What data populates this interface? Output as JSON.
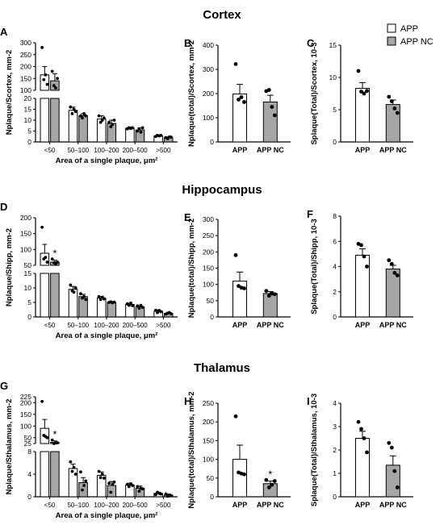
{
  "figure": {
    "section_titles": [
      "Cortex",
      "Hippocampus",
      "Thalamus"
    ],
    "legend": {
      "items": [
        {
          "label": "APP",
          "color": "#ffffff"
        },
        {
          "label": "APP NC",
          "color": "#a6a6a6"
        }
      ],
      "placement": "top-right"
    },
    "colors": {
      "APP": "#ffffff",
      "APP NC": "#a6a6a6",
      "stroke": "#000000",
      "point": "#000000"
    }
  },
  "chart_data": [
    {
      "panel": "A",
      "type": "bar",
      "xlabel": "Area of a single plaque, μm²",
      "ylabel": "Nplaque/Scortex, mm-2",
      "categories": [
        "<50",
        "50–100",
        "100–200",
        "200–500",
        ">500"
      ],
      "y_broken": true,
      "y_lower": {
        "range": [
          0,
          20
        ],
        "ticks": [
          "0",
          "5",
          "10",
          "15",
          "20"
        ]
      },
      "y_upper": {
        "range": [
          100,
          300
        ],
        "ticks": [
          "100",
          "150",
          "200",
          "250",
          "300"
        ]
      },
      "series": [
        {
          "name": "APP",
          "values": [
            165,
            14.5,
            10.5,
            6.3,
            2.8
          ],
          "errors": [
            35,
            1.5,
            1.5,
            0.5,
            0.4
          ],
          "points": [
            [
              280,
              145,
              165,
              125
            ],
            [
              16,
              13,
              15,
              14
            ],
            [
              12,
              9,
              10,
              11
            ],
            [
              6,
              6.5,
              6.2,
              6.5
            ],
            [
              2.5,
              3,
              2.8,
              3
            ]
          ]
        },
        {
          "name": "APP NC",
          "values": [
            140,
            12,
            8.5,
            5.5,
            2
          ],
          "errors": [
            30,
            1,
            1.5,
            1,
            0.3
          ],
          "points": [
            [
              180,
              120,
              110,
              150
            ],
            [
              12,
              11,
              13,
              12
            ],
            [
              9,
              7,
              8,
              10
            ],
            [
              5,
              6,
              4.5,
              6.5
            ],
            [
              2,
              1.5,
              2.3,
              2.2
            ]
          ]
        }
      ]
    },
    {
      "panel": "B",
      "type": "bar",
      "ylabel": "Nplaque(total)/Scortex, mm-2",
      "categories": [
        "APP",
        "APP NC"
      ],
      "ylim": [
        0,
        400
      ],
      "ticks": [
        "0",
        "100",
        "200",
        "300",
        "400"
      ],
      "values": [
        198,
        165
      ],
      "errors": [
        40,
        28
      ],
      "points": [
        [
          322,
          175,
          185,
          165
        ],
        [
          210,
          215,
          145,
          110
        ]
      ]
    },
    {
      "panel": "C",
      "type": "bar",
      "ylabel": "Splaque(Total)/Scortex, 10-3",
      "categories": [
        "APP",
        "APP NC"
      ],
      "ylim": [
        0,
        15
      ],
      "ticks": [
        "0",
        "5",
        "10",
        "15"
      ],
      "values": [
        8.3,
        5.8
      ],
      "errors": [
        0.9,
        0.7
      ],
      "points": [
        [
          11,
          7.8,
          7.5,
          7.9
        ],
        [
          7,
          6.3,
          5.2,
          4.5
        ]
      ]
    },
    {
      "panel": "D",
      "type": "bar",
      "xlabel": "Area of a single plaque, μm²",
      "ylabel": "Nplaque/Shipp, mm-2",
      "categories": [
        "<50",
        "50–100",
        "100–200",
        "200–500",
        ">500"
      ],
      "y_broken": true,
      "y_lower": {
        "range": [
          0,
          15
        ],
        "ticks": [
          "0",
          "5",
          "10",
          "15"
        ]
      },
      "y_upper": {
        "range": [
          50,
          200
        ],
        "ticks": [
          "50",
          "100",
          "150",
          "200"
        ]
      },
      "annotation": "*",
      "series": [
        {
          "name": "APP",
          "values": [
            88,
            9.5,
            6.5,
            4.3,
            2
          ],
          "errors": [
            28,
            1,
            0.5,
            0.4,
            0.4
          ],
          "points": [
            [
              170,
              70,
              75,
              60
            ],
            [
              11,
              9,
              8.5,
              10
            ],
            [
              7,
              6,
              6.8,
              6.2
            ],
            [
              4.5,
              4,
              4.8,
              3.9
            ],
            [
              2.3,
              1.5,
              2.2,
              1.8
            ]
          ]
        },
        {
          "name": "APP NC",
          "values": [
            60,
            7,
            5,
            3.5,
            1.2
          ],
          "errors": [
            6,
            0.8,
            0.3,
            0.4,
            0.2
          ],
          "points": [
            [
              70,
              58,
              55,
              60
            ],
            [
              8,
              6.5,
              7,
              6
            ],
            [
              5,
              5.2,
              4.9,
              5.1
            ],
            [
              3.8,
              3,
              4,
              3.3
            ],
            [
              1,
              1.3,
              1.5,
              1.1
            ]
          ]
        }
      ]
    },
    {
      "panel": "E",
      "type": "bar",
      "ylabel": "Nplaque(total)/Shipp, mm-2",
      "categories": [
        "APP",
        "APP NC"
      ],
      "ylim": [
        0,
        300
      ],
      "ticks": [
        "0",
        "50",
        "100",
        "150",
        "200",
        "250",
        "300"
      ],
      "values": [
        110,
        72
      ],
      "errors": [
        28,
        6
      ],
      "points": [
        [
          190,
          95,
          90,
          88
        ],
        [
          80,
          65,
          72,
          70
        ]
      ]
    },
    {
      "panel": "F",
      "type": "bar",
      "ylabel": "Splaque(Total)/Shipp, 10-3",
      "categories": [
        "APP",
        "APP NC"
      ],
      "ylim": [
        0,
        8
      ],
      "ticks": [
        "0",
        "2",
        "4",
        "6",
        "8"
      ],
      "values": [
        4.9,
        3.8
      ],
      "errors": [
        0.5,
        0.3
      ],
      "points": [
        [
          5.8,
          5.7,
          4.8,
          4
        ],
        [
          4.5,
          4.2,
          3.5,
          3.3
        ]
      ]
    },
    {
      "panel": "G",
      "type": "bar",
      "xlabel": "Area of a single plaque, μm²",
      "ylabel": "Nplaque/Sthalamus, mm-2",
      "categories": [
        "<50",
        "50–100",
        "100–200",
        "200–500",
        ">500"
      ],
      "y_broken": true,
      "y_lower": {
        "range": [
          0,
          8
        ],
        "ticks": [
          "0",
          "4",
          "8"
        ]
      },
      "y_upper": {
        "range": [
          25,
          225
        ],
        "ticks": [
          "25",
          "50",
          "100",
          "150",
          "200",
          "225"
        ]
      },
      "annotation": "*",
      "series": [
        {
          "name": "APP",
          "values": [
            90,
            5,
            3.8,
            2.1,
            0.6
          ],
          "errors": [
            38,
            0.8,
            0.6,
            0.3,
            0.2
          ],
          "points": [
            [
              205,
              60,
              55,
              50
            ],
            [
              6.2,
              4.5,
              5.2,
              4
            ],
            [
              4.5,
              3.4,
              4,
              3.3
            ],
            [
              2.2,
              1.8,
              2.3,
              2
            ],
            [
              0.4,
              0.8,
              0.6,
              0.5
            ]
          ]
        },
        {
          "name": "APP NC",
          "values": [
            30,
            2.5,
            2,
            1.5,
            0.3
          ],
          "errors": [
            6,
            0.9,
            0.7,
            0.4,
            0.2
          ],
          "points": [
            [
              40,
              25,
              28,
              28
            ],
            [
              4.4,
              1.2,
              2,
              2.8
            ],
            [
              2.4,
              0.8,
              2.2,
              2.6
            ],
            [
              1.8,
              1,
              1.5,
              1.4
            ],
            [
              0.5,
              0.1,
              0.3,
              0.2
            ]
          ]
        }
      ]
    },
    {
      "panel": "H",
      "type": "bar",
      "ylabel": "Nplaque(total)/Sthalamus, mm-2",
      "categories": [
        "APP",
        "APP NC"
      ],
      "ylim": [
        0,
        250
      ],
      "ticks": [
        "0",
        "50",
        "100",
        "150",
        "200",
        "250"
      ],
      "values": [
        100,
        35
      ],
      "errors": [
        38,
        7
      ],
      "points": [
        [
          215,
          65,
          62,
          60
        ],
        [
          45,
          25,
          32,
          42
        ]
      ],
      "annotation": "*"
    },
    {
      "panel": "I",
      "type": "bar",
      "ylabel": "Splaque(Total)/Sthalamus, 10-3",
      "categories": [
        "APP",
        "APP NC"
      ],
      "ylim": [
        0,
        4
      ],
      "ticks": [
        "0",
        "1",
        "2",
        "3",
        "4"
      ],
      "values": [
        2.5,
        1.35
      ],
      "errors": [
        0.3,
        0.4
      ],
      "points": [
        [
          3.2,
          2.9,
          2.5,
          1.9
        ],
        [
          2.3,
          2.1,
          1.1,
          0.4
        ]
      ]
    }
  ]
}
